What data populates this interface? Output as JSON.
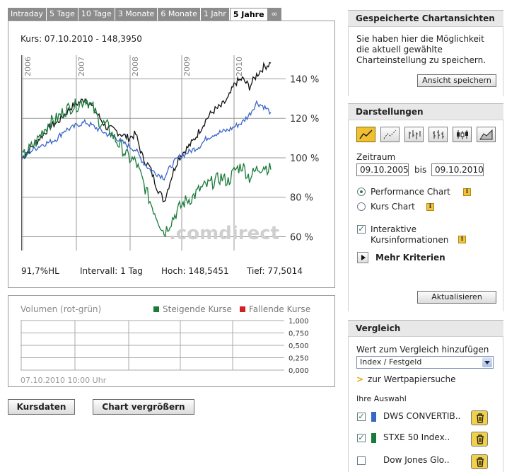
{
  "tabs": [
    {
      "label": "Intraday",
      "active": false
    },
    {
      "label": "5 Tage",
      "active": false
    },
    {
      "label": "10 Tage",
      "active": false
    },
    {
      "label": "3 Monate",
      "active": false
    },
    {
      "label": "6 Monate",
      "active": false
    },
    {
      "label": "1 Jahr",
      "active": false
    },
    {
      "label": "5 Jahre",
      "active": true
    },
    {
      "label": "∞",
      "active": false
    }
  ],
  "chart": {
    "kurs_label": "Kurs: 07.10.2010 - 148,3950",
    "watermark": ".comdirect",
    "stats": {
      "hl": "91,7%HL",
      "intervall": "Intervall: 1 Tag",
      "hoch": "Hoch: 148,5451",
      "tief": "Tief: 77,5014"
    }
  },
  "chart_data": {
    "type": "line",
    "x_ticks": [
      "2006",
      "2007",
      "2008",
      "2009",
      "2010"
    ],
    "y_ticks": [
      "140 %",
      "120 %",
      "100 %",
      "80 %",
      "60 %"
    ],
    "y_values": [
      140,
      120,
      100,
      80,
      60
    ],
    "ylim": [
      53,
      152
    ],
    "series": [
      {
        "color": "#111111",
        "values": [
          100,
          104,
          108,
          112,
          116,
          118,
          122,
          126,
          128,
          130,
          125,
          120,
          115,
          114,
          112,
          110,
          112,
          100,
          95,
          85,
          78,
          90,
          100,
          104,
          108,
          114,
          120,
          124,
          126,
          130,
          138,
          140,
          136,
          142,
          146,
          148
        ]
      },
      {
        "color": "#3a66c8",
        "values": [
          100,
          103,
          105,
          107,
          108,
          110,
          114,
          115,
          117,
          118,
          116,
          114,
          112,
          111,
          108,
          106,
          104,
          98,
          94,
          92,
          90,
          96,
          100,
          102,
          104,
          106,
          110,
          112,
          113,
          114,
          116,
          118,
          122,
          128,
          126,
          123
        ]
      },
      {
        "color": "#1a7a3a",
        "values": [
          100,
          104,
          108,
          114,
          118,
          120,
          124,
          126,
          127,
          130,
          125,
          118,
          116,
          110,
          105,
          100,
          98,
          88,
          78,
          70,
          62,
          68,
          74,
          78,
          80,
          84,
          86,
          88,
          90,
          88,
          94,
          96,
          90,
          94,
          96,
          94
        ]
      }
    ]
  },
  "volume": {
    "title": "Volumen (rot-grün)",
    "legend_up": "Steigende Kurse",
    "legend_down": "Fallende Kurse",
    "up_color": "#1a7a3a",
    "down_color": "#d02020",
    "y_ticks": [
      "1,000",
      "0,750",
      "0,500",
      "0,250",
      "0,000"
    ],
    "date": "07.10.2010 10:00 Uhr"
  },
  "buttons": {
    "kursdaten": "Kursdaten",
    "vergroessern": "Chart vergrößern"
  },
  "sidebar": {
    "saved": {
      "title": "Gespeicherte Chartansichten",
      "text1": "Sie haben hier die Möglichkeit",
      "text2": "die aktuell gewählte",
      "text3": "Charteinstellung zu speichern.",
      "button": "Ansicht speichern"
    },
    "darstellungen": {
      "title": "Darstellungen",
      "types": [
        "line-chart-icon",
        "point-chart-icon",
        "ohlc-chart-icon",
        "hlc-chart-icon",
        "candlestick-chart-icon",
        "mountain-chart-icon"
      ],
      "zeitraum_label": "Zeitraum",
      "from": "09.10.2005",
      "bis_label": "bis",
      "to": "09.10.2010",
      "performance_label": "Performance Chart",
      "kurs_label": "Kurs Chart",
      "interaktive_1": "Interaktive",
      "interaktive_2": "Kursinformationen",
      "mehr_kriterien": "Mehr Kriterien",
      "aktualisieren": "Aktualisieren"
    },
    "vergleich": {
      "title": "Vergleich",
      "add_label": "Wert zum Vergleich hinzufügen",
      "select_value": "Index / Festgeld",
      "link": "zur Wertpapiersuche",
      "auswahl": "Ihre Auswahl",
      "items": [
        {
          "label": "DWS CONVERTIB..",
          "checked": true,
          "color": "#3a66c8"
        },
        {
          "label": "STXE 50 Index..",
          "checked": true,
          "color": "#1a7a3a"
        },
        {
          "label": "Dow Jones Glo..",
          "checked": false,
          "color": ""
        }
      ]
    }
  }
}
